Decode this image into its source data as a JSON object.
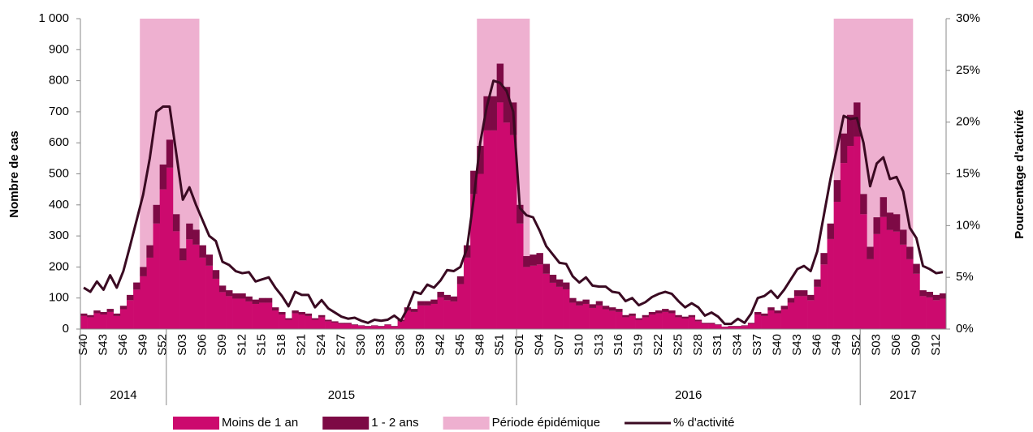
{
  "chart_data": {
    "type": "bar",
    "y_label": "Nombre de cas",
    "y2_label": "Pourcentage d'activité",
    "categories": [
      "S40",
      null,
      null,
      "S43",
      null,
      null,
      "S46",
      null,
      null,
      "S49",
      null,
      null,
      "S52",
      null,
      null,
      "S03",
      null,
      null,
      "S06",
      null,
      null,
      "S09",
      null,
      null,
      "S12",
      null,
      null,
      "S15",
      null,
      null,
      "S18",
      null,
      null,
      "S21",
      null,
      null,
      "S24",
      null,
      null,
      "S27",
      null,
      null,
      "S30",
      null,
      null,
      "S33",
      null,
      null,
      "S36",
      null,
      null,
      "S39",
      null,
      null,
      "S42",
      null,
      null,
      "S45",
      null,
      null,
      "S48",
      null,
      null,
      "S51",
      null,
      null,
      "S01",
      null,
      null,
      "S04",
      null,
      null,
      "S07",
      null,
      null,
      "S10",
      null,
      null,
      "S13",
      null,
      null,
      "S16",
      null,
      null,
      "S19",
      null,
      null,
      "S22",
      null,
      null,
      "S25",
      null,
      null,
      "S28",
      null,
      null,
      "S31",
      null,
      null,
      "S34",
      null,
      null,
      "S37",
      null,
      null,
      "S40",
      null,
      null,
      "S43",
      null,
      null,
      "S46",
      null,
      null,
      "S49",
      null,
      null,
      "S52",
      null,
      null,
      "S03",
      null,
      null,
      "S06",
      null,
      null,
      "S09",
      null,
      null,
      "S12",
      null
    ],
    "x_groups": [
      {
        "label": "2014",
        "count": 13
      },
      {
        "label": "2015",
        "count": 53
      },
      {
        "label": "2016",
        "count": 52
      },
      {
        "label": "2017",
        "count": 13
      }
    ],
    "series": [
      {
        "name": "Moins de 1 an",
        "color": "#cc0a6e",
        "values": [
          42,
          38,
          51,
          47,
          55,
          42,
          64,
          93,
          127,
          170,
          230,
          340,
          450,
          520,
          315,
          221,
          289,
          272,
          230,
          204,
          162,
          119,
          106,
          98,
          98,
          89,
          81,
          85,
          85,
          60,
          47,
          30,
          51,
          47,
          42,
          30,
          38,
          25,
          21,
          17,
          17,
          13,
          10,
          8,
          10,
          8,
          13,
          8,
          25,
          60,
          55,
          76,
          76,
          81,
          102,
          93,
          89,
          145,
          230,
          435,
          500,
          640,
          640,
          730,
          665,
          625,
          340,
          200,
          204,
          208,
          178,
          149,
          136,
          128,
          85,
          76,
          81,
          68,
          76,
          64,
          59,
          55,
          38,
          42,
          30,
          38,
          47,
          51,
          55,
          51,
          38,
          34,
          38,
          25,
          17,
          17,
          13,
          7,
          8,
          8,
          10,
          17,
          47,
          42,
          60,
          51,
          64,
          85,
          106,
          106,
          93,
          136,
          208,
          290,
          410,
          535,
          590,
          620,
          370,
          225,
          306,
          361,
          319,
          314,
          272,
          225,
          178,
          106,
          102,
          93,
          98
        ]
      },
      {
        "name": "1 - 2 ans",
        "color": "#7d0a45",
        "values": [
          8,
          7,
          9,
          8,
          10,
          8,
          11,
          17,
          23,
          30,
          40,
          60,
          80,
          90,
          55,
          39,
          51,
          48,
          40,
          36,
          28,
          21,
          19,
          17,
          17,
          16,
          14,
          15,
          15,
          10,
          8,
          5,
          9,
          8,
          8,
          5,
          7,
          5,
          4,
          3,
          3,
          2,
          2,
          2,
          2,
          2,
          2,
          2,
          5,
          10,
          10,
          14,
          14,
          14,
          18,
          17,
          16,
          25,
          40,
          75,
          90,
          110,
          110,
          125,
          115,
          105,
          60,
          35,
          36,
          37,
          32,
          26,
          24,
          22,
          15,
          14,
          14,
          12,
          14,
          11,
          11,
          10,
          7,
          8,
          5,
          7,
          8,
          9,
          10,
          9,
          7,
          6,
          7,
          5,
          3,
          3,
          2,
          1,
          2,
          2,
          2,
          3,
          8,
          8,
          10,
          9,
          11,
          15,
          19,
          19,
          17,
          24,
          37,
          50,
          70,
          95,
          100,
          110,
          65,
          40,
          54,
          64,
          56,
          56,
          48,
          40,
          32,
          19,
          18,
          17,
          17
        ]
      },
      {
        "name": "Période épidémique",
        "color": "#eeb0d0",
        "ranges": [
          [
            9,
            17
          ],
          [
            60,
            67
          ],
          [
            114,
            125
          ]
        ]
      },
      {
        "name": "% d'activité",
        "color": "#3a0a22",
        "axis": "y2",
        "values": [
          4.0,
          3.6,
          4.6,
          3.8,
          5.2,
          4.0,
          5.6,
          8,
          10.5,
          13,
          16.5,
          21,
          21.5,
          21.5,
          17,
          12.5,
          13.7,
          12,
          10.5,
          9,
          8.5,
          6.5,
          6.2,
          5.6,
          5.4,
          5.5,
          4.6,
          4.8,
          5,
          4,
          3.2,
          2.2,
          3.6,
          3.3,
          3.3,
          2.1,
          2.8,
          2,
          1.6,
          1.2,
          1,
          1.1,
          0.8,
          0.6,
          0.9,
          0.8,
          0.9,
          1.3,
          0.8,
          2,
          3.6,
          3.4,
          4.3,
          4,
          4.7,
          5.7,
          5.6,
          6,
          7.8,
          12.5,
          18,
          21.5,
          24,
          23.8,
          23,
          21,
          11.7,
          11,
          10.8,
          9.5,
          8,
          7.2,
          6.4,
          6.3,
          5.1,
          4.5,
          5,
          4.2,
          4.1,
          4.1,
          3.6,
          3.5,
          2.7,
          3,
          2.3,
          2.6,
          3.1,
          3.4,
          3.6,
          3.4,
          2.7,
          2.1,
          2.5,
          2.1,
          1.3,
          1.6,
          1.2,
          0.5,
          0.5,
          1,
          0.6,
          1.5,
          3,
          3.2,
          3.7,
          3,
          3.8,
          4.8,
          5.8,
          6.1,
          5.6,
          7.5,
          11,
          14.5,
          17.5,
          20.6,
          20.3,
          20.4,
          18,
          13.8,
          16,
          16.6,
          14.5,
          14.7,
          13.3,
          9.8,
          8.8,
          6.1,
          5.8,
          5.4,
          5.5
        ]
      }
    ],
    "ylim": [
      0,
      1000
    ],
    "yticks": [
      0,
      100,
      200,
      300,
      400,
      500,
      600,
      700,
      800,
      900,
      {
        "value": 1000,
        "label": "1 000"
      }
    ],
    "y2lim": [
      0,
      30
    ],
    "y2ticks": [
      {
        "value": 0,
        "label": "0%"
      },
      {
        "value": 5,
        "label": "5%"
      },
      {
        "value": 10,
        "label": "10%"
      },
      {
        "value": 15,
        "label": "15%"
      },
      {
        "value": 20,
        "label": "20%"
      },
      {
        "value": 25,
        "label": "25%"
      },
      {
        "value": 30,
        "label": "30%"
      }
    ],
    "legend": "bottom"
  }
}
